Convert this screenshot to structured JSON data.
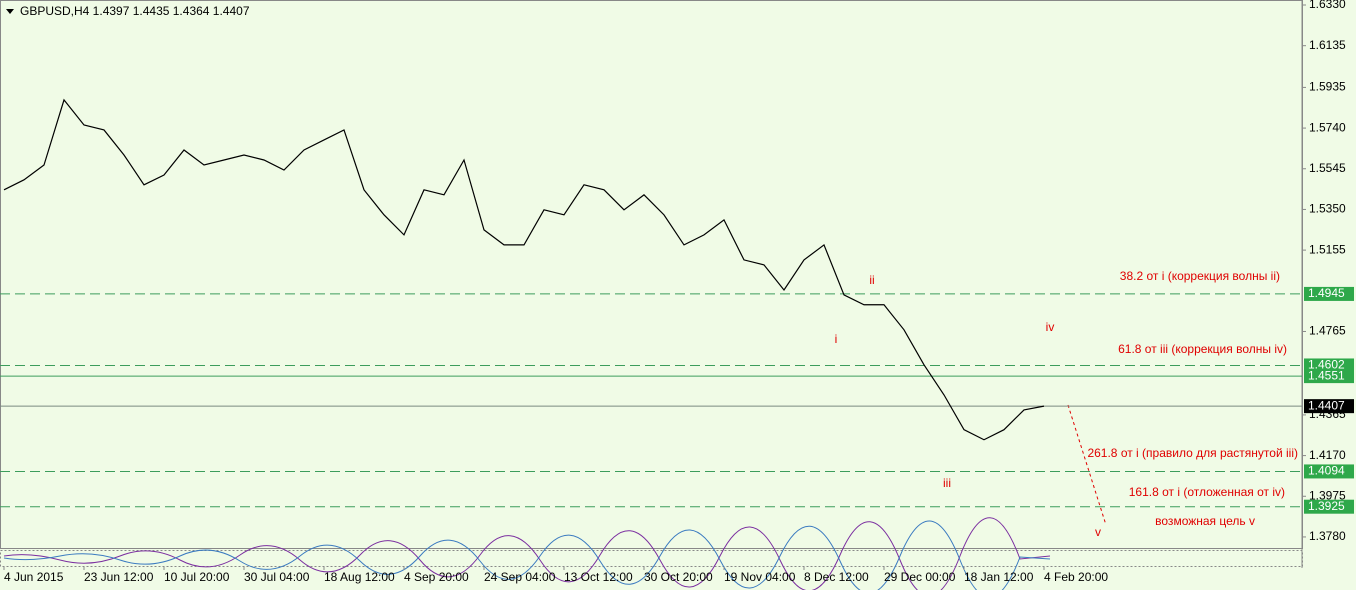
{
  "chart_data": {
    "type": "line",
    "title": "GBPUSD,H4  1.4397 1.4435 1.4364 1.4407",
    "categories": [
      "4 Jun 2015",
      null,
      null,
      null,
      "23 Jun 12:00",
      null,
      null,
      null,
      "10 Jul 20:00",
      null,
      null,
      null,
      "30 Jul 04:00",
      null,
      null,
      null,
      "18 Aug 12:00",
      null,
      null,
      null,
      "4 Sep 20:00",
      null,
      null,
      null,
      "24 Sep 04:00",
      null,
      null,
      null,
      "13 Oct 12:00",
      null,
      null,
      null,
      "30 Oct 20:00",
      null,
      null,
      null,
      "19 Nov 04:00",
      null,
      null,
      null,
      "8 Dec 12:00",
      null,
      null,
      null,
      "29 Dec 00:00",
      null,
      null,
      null,
      "18 Jan 12:00",
      null,
      null,
      null,
      "4 Feb 20:00"
    ],
    "series": [
      {
        "name": "GBPUSD,H4",
        "color": "#000000",
        "values": [
          1.5444,
          1.5492,
          1.5563,
          1.5875,
          1.5755,
          1.5731,
          1.5611,
          1.5468,
          1.5515,
          1.5635,
          1.5563,
          1.5587,
          1.5611,
          1.5587,
          1.5539,
          1.5635,
          1.5683,
          1.5731,
          1.5444,
          1.5324,
          1.5228,
          1.5444,
          1.542,
          1.5587,
          1.5252,
          1.518,
          1.518,
          1.5348,
          1.5324,
          1.5468,
          1.5444,
          1.5348,
          1.542,
          1.5324,
          1.518,
          1.5228,
          1.53,
          1.5108,
          1.5084,
          1.4964,
          1.5108,
          1.518,
          1.494,
          1.4893,
          1.4893,
          1.4773,
          1.4605,
          1.4461,
          1.4294,
          1.4246,
          1.4294,
          1.4389,
          1.4407
        ]
      }
    ],
    "ylim": [
      1.3727,
      1.6354
    ],
    "yticks": [
      {
        "value": 1.633,
        "label": "1.6330"
      },
      {
        "value": 1.6135,
        "label": "1.6135"
      },
      {
        "value": 1.5935,
        "label": "1.5935"
      },
      {
        "value": 1.574,
        "label": "1.5740"
      },
      {
        "value": 1.5545,
        "label": "1.5545"
      },
      {
        "value": 1.535,
        "label": "1.5350"
      },
      {
        "value": 1.5155,
        "label": "1.5155"
      },
      {
        "value": 1.4765,
        "label": "1.4765"
      },
      {
        "value": 1.4365,
        "label": "1.4365"
      },
      {
        "value": 1.417,
        "label": "1.4170"
      },
      {
        "value": 1.3975,
        "label": "1.3975"
      },
      {
        "value": 1.378,
        "label": "1.3780"
      }
    ],
    "levels": [
      {
        "value": 1.4945,
        "style": "dashed"
      },
      {
        "value": 1.4602,
        "style": "dashed"
      },
      {
        "value": 1.4551,
        "style": "solid"
      },
      {
        "value": 1.4407,
        "style": "current"
      },
      {
        "value": 1.4094,
        "style": "dashed"
      },
      {
        "value": 1.3925,
        "style": "dashed"
      }
    ],
    "annotations": [
      "38.2 от i (коррекция волны ii)",
      "61.8 от iii (коррекция волны iv)",
      "261.8 от i (правило для растянутой iii)",
      "161.8 от i (отложенная от iv)",
      "возможная цель v"
    ],
    "wave_labels": [
      "i",
      "ii",
      "iii",
      "iv",
      "v"
    ]
  }
}
